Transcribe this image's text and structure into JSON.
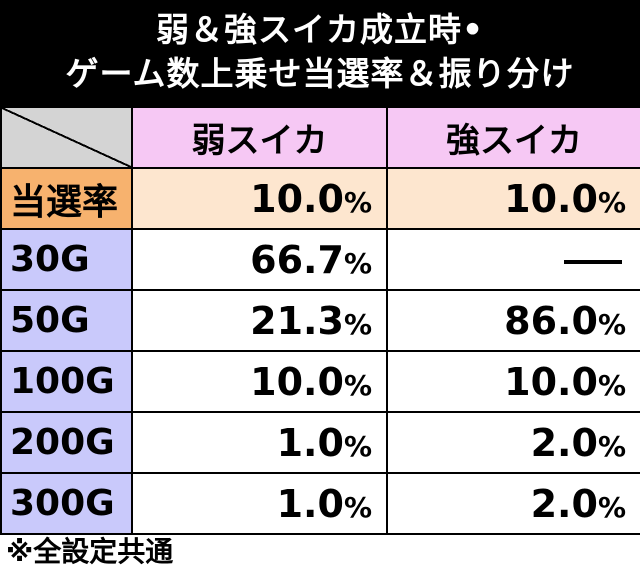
{
  "title": {
    "line1": "弱＆強スイカ成立時•",
    "line2": "ゲーム数上乗せ当選率＆振り分け"
  },
  "table": {
    "columns": [
      "弱スイカ",
      "強スイカ"
    ],
    "rows": [
      {
        "label": "当選率",
        "values": [
          "10.0",
          "10.0"
        ]
      },
      {
        "label": "30G",
        "values": [
          "66.7",
          ""
        ]
      },
      {
        "label": "50G",
        "values": [
          "21.3",
          "86.0"
        ]
      },
      {
        "label": "100G",
        "values": [
          "10.0",
          "10.0"
        ]
      },
      {
        "label": "200G",
        "values": [
          "1.0",
          "2.0"
        ]
      },
      {
        "label": "300G",
        "values": [
          "1.0",
          "2.0"
        ]
      }
    ],
    "percent_sign": "%"
  },
  "footnote": "※全設定共通",
  "colors": {
    "header_bg": "#000000",
    "column_header_bg": "#f6c8f4",
    "rate_row_header_bg": "#f7b26e",
    "rate_row_bg": "#fde6cf",
    "row_header_bg": "#c9c9fb",
    "corner_bg": "#d4d4d4"
  }
}
